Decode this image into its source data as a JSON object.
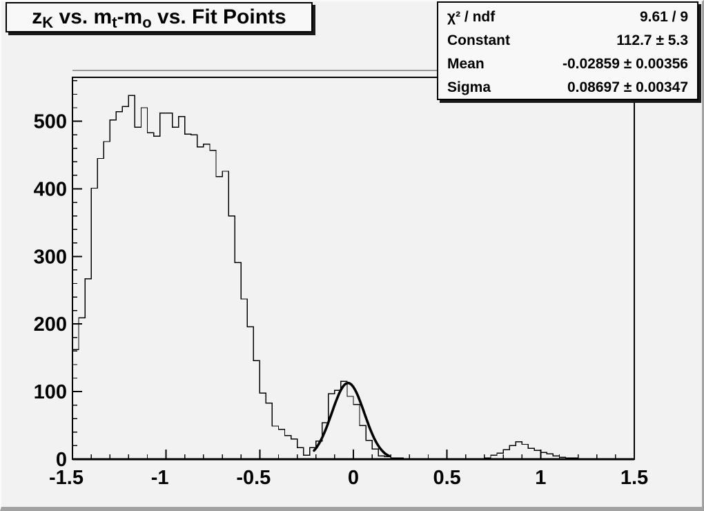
{
  "canvas": {
    "background": "#f2f2f2",
    "bevel_light": "#fbfbfb",
    "bevel_dark": "#a2a2a2",
    "box_fill": "#f8f8f8",
    "line_color": "#000000",
    "shadow_color": "#1a1a1a"
  },
  "title": {
    "plain": "zK vs. mt-mo vs. Fit Points",
    "parts": [
      {
        "text": "z",
        "sub": false
      },
      {
        "text": "K",
        "sub": true
      },
      {
        "text": " vs. m",
        "sub": false
      },
      {
        "text": "t",
        "sub": true
      },
      {
        "text": "-m",
        "sub": false
      },
      {
        "text": "o",
        "sub": true
      },
      {
        "text": " vs. Fit Points",
        "sub": false
      }
    ]
  },
  "stats": {
    "rows": [
      {
        "label": "χ² / ndf",
        "value": "9.61 / 9"
      },
      {
        "label": "Constant",
        "value": "112.7 ± 5.3"
      },
      {
        "label": "Mean",
        "value": "-0.02859 ± 0.00356"
      },
      {
        "label": "Sigma",
        "value": "0.08697 ± 0.00347"
      }
    ]
  },
  "chart_data": {
    "type": "bar",
    "subtype": "step-histogram",
    "title": "zK vs. mt-mo vs. Fit Points",
    "xlabel": "",
    "ylabel": "",
    "xlim": [
      -1.5,
      1.5
    ],
    "ylim": [
      0,
      565
    ],
    "grid": false,
    "x_minor_step": 0.1,
    "y_minor_step": 20,
    "xticks": [
      {
        "value": -1.5,
        "label": "-1.5"
      },
      {
        "value": -1.0,
        "label": "-1"
      },
      {
        "value": -0.5,
        "label": "-0.5"
      },
      {
        "value": 0.0,
        "label": "0"
      },
      {
        "value": 0.5,
        "label": "0.5"
      },
      {
        "value": 1.0,
        "label": "1"
      },
      {
        "value": 1.5,
        "label": "1.5"
      }
    ],
    "yticks": [
      {
        "value": 0,
        "label": "0"
      },
      {
        "value": 100,
        "label": "100"
      },
      {
        "value": 200,
        "label": "200"
      },
      {
        "value": 300,
        "label": "300"
      },
      {
        "value": 400,
        "label": "400"
      },
      {
        "value": 500,
        "label": "500"
      }
    ],
    "bins": {
      "start": -1.5,
      "width": 0.0333333,
      "count": 90,
      "values": [
        162,
        209,
        267,
        401,
        445,
        470,
        502,
        514,
        522,
        538,
        491,
        520,
        483,
        478,
        512,
        512,
        491,
        507,
        481,
        480,
        462,
        466,
        457,
        418,
        426,
        360,
        291,
        237,
        196,
        146,
        98,
        83,
        49,
        44,
        35,
        30,
        17,
        6,
        17,
        27,
        54,
        97,
        102,
        115,
        93,
        81,
        50,
        28,
        15,
        5,
        4,
        2,
        2,
        1,
        0,
        0,
        0,
        0,
        0,
        0,
        0,
        0,
        0,
        0,
        0,
        1,
        2,
        6,
        9,
        14,
        20,
        26,
        22,
        16,
        13,
        10,
        8,
        5,
        3,
        2,
        2,
        1,
        0,
        0,
        0,
        0,
        0,
        0,
        0,
        0
      ]
    },
    "fit": {
      "type": "gaussian",
      "constant": 112.7,
      "mean": -0.02859,
      "sigma": 0.08697,
      "chi2": 9.61,
      "ndf": 9,
      "draw_range": [
        -0.21,
        0.19
      ]
    }
  }
}
